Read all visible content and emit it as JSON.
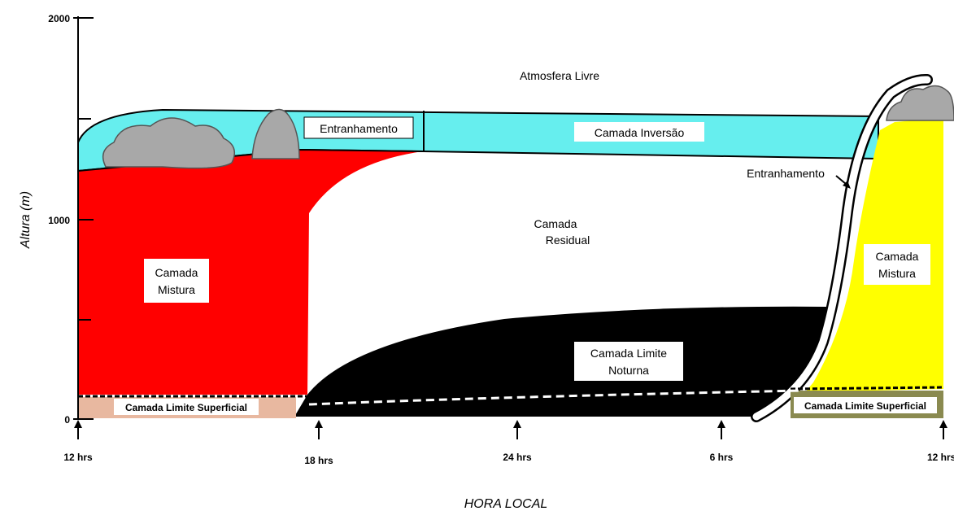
{
  "axes": {
    "y_title": "Altura (m)",
    "y_ticks": [
      "2000",
      "1000",
      "0"
    ],
    "x_title": "HORA LOCAL",
    "x_ticks": [
      "12 hrs",
      "18 hrs",
      "24 hrs",
      "6 hrs",
      "12 hrs"
    ]
  },
  "labels": {
    "free_atmosphere": "Atmosfera Livre",
    "entrainment_left": "Entranhamento",
    "inversion_layer": "Camada Inversão",
    "entrainment_right": "Entranhamento",
    "residual_line1": "Camada",
    "residual_line2": "Residual",
    "mixed_left_line1": "Camada",
    "mixed_left_line2": "Mistura",
    "mixed_right_line1": "Camada",
    "mixed_right_line2": "Mistura",
    "nocturnal_line1": "Camada Limite",
    "nocturnal_line2": "Noturna",
    "surface_left": "Camada Limite Superficial",
    "surface_right": "Camada Limite Superficial"
  },
  "colors": {
    "mixed_layer_day1": "#ff0000",
    "mixed_layer_day2": "#ffff00",
    "entrainment_zone": "#66eeee",
    "nocturnal_layer": "#000000",
    "residual_layer": "#ffffff",
    "surface_layer_day1": "#e8b8a0",
    "surface_layer_day2": "#8a8a50",
    "clouds": "#a8a8a8"
  }
}
